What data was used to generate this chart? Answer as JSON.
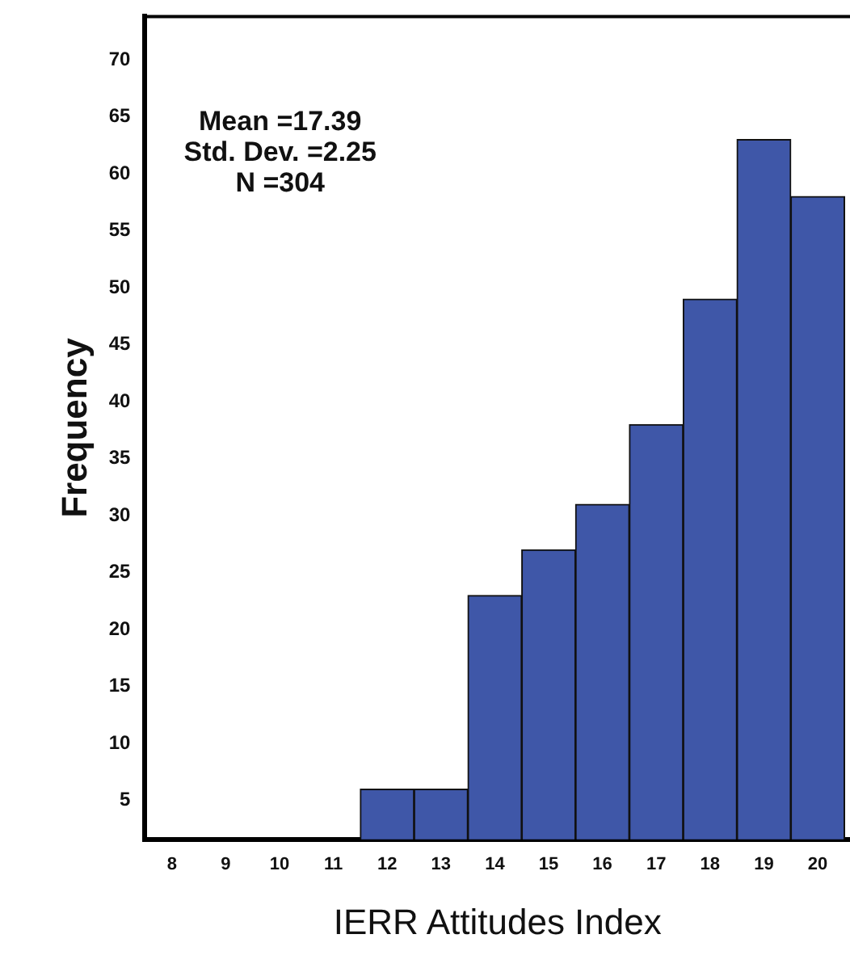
{
  "chart_data": {
    "type": "histogram",
    "xlabel": "IERR Attitudes Index",
    "ylabel": "Frequency",
    "bins": [
      11.5,
      12.5,
      13.5,
      14.5,
      15.5,
      16.5,
      17.5,
      18.5,
      19.5,
      20.5
    ],
    "values": [
      6,
      6,
      23,
      27,
      31,
      38,
      49,
      63,
      58
    ],
    "color": "#3f57a8",
    "xlim": [
      7.5,
      20.6
    ],
    "xticks": [
      8,
      9,
      10,
      11,
      12,
      13,
      14,
      15,
      16,
      17,
      18,
      19,
      20
    ],
    "ylim": [
      1.6,
      73.8
    ],
    "yticks": [
      5,
      10,
      15,
      20,
      25,
      30,
      35,
      40,
      45,
      50,
      55,
      60,
      65,
      70
    ],
    "annotations": [
      "Mean =17.39",
      "Std. Dev. =2.25",
      "N =304"
    ],
    "grid": false,
    "legend": false
  }
}
